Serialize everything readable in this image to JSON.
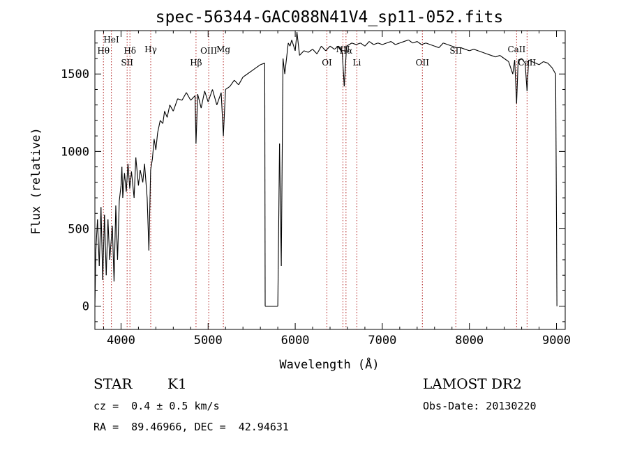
{
  "chart_data": {
    "type": "line",
    "title": "spec-56344-GAC088N41V4_sp11-052.fits",
    "xlabel": "Wavelength (Å)",
    "ylabel": "Flux (relative)",
    "xlim": [
      3700,
      9100
    ],
    "ylim": [
      -150,
      1780
    ],
    "x_ticks": [
      4000,
      5000,
      6000,
      7000,
      8000,
      9000
    ],
    "y_ticks": [
      0,
      500,
      1000,
      1500
    ],
    "grid": false,
    "series": [
      {
        "color": "#000000",
        "points": [
          [
            3700,
            0
          ],
          [
            3710,
            350
          ],
          [
            3730,
            560
          ],
          [
            3750,
            260
          ],
          [
            3770,
            640
          ],
          [
            3790,
            170
          ],
          [
            3810,
            590
          ],
          [
            3830,
            200
          ],
          [
            3850,
            560
          ],
          [
            3870,
            300
          ],
          [
            3900,
            520
          ],
          [
            3920,
            160
          ],
          [
            3940,
            650
          ],
          [
            3960,
            300
          ],
          [
            3980,
            680
          ],
          [
            4000,
            780
          ],
          [
            4010,
            900
          ],
          [
            4020,
            700
          ],
          [
            4040,
            860
          ],
          [
            4060,
            740
          ],
          [
            4080,
            920
          ],
          [
            4100,
            760
          ],
          [
            4120,
            870
          ],
          [
            4150,
            700
          ],
          [
            4170,
            960
          ],
          [
            4200,
            780
          ],
          [
            4220,
            880
          ],
          [
            4250,
            800
          ],
          [
            4270,
            920
          ],
          [
            4300,
            700
          ],
          [
            4320,
            360
          ],
          [
            4340,
            880
          ],
          [
            4360,
            950
          ],
          [
            4380,
            1080
          ],
          [
            4400,
            1010
          ],
          [
            4420,
            1120
          ],
          [
            4450,
            1200
          ],
          [
            4480,
            1180
          ],
          [
            4500,
            1260
          ],
          [
            4530,
            1220
          ],
          [
            4560,
            1300
          ],
          [
            4600,
            1260
          ],
          [
            4650,
            1340
          ],
          [
            4700,
            1330
          ],
          [
            4750,
            1380
          ],
          [
            4800,
            1330
          ],
          [
            4850,
            1360
          ],
          [
            4861,
            1050
          ],
          [
            4880,
            1370
          ],
          [
            4920,
            1280
          ],
          [
            4960,
            1390
          ],
          [
            5000,
            1320
          ],
          [
            5050,
            1400
          ],
          [
            5100,
            1300
          ],
          [
            5150,
            1380
          ],
          [
            5175,
            1100
          ],
          [
            5200,
            1400
          ],
          [
            5250,
            1420
          ],
          [
            5300,
            1460
          ],
          [
            5350,
            1430
          ],
          [
            5400,
            1480
          ],
          [
            5450,
            1500
          ],
          [
            5500,
            1520
          ],
          [
            5550,
            1540
          ],
          [
            5600,
            1560
          ],
          [
            5650,
            1570
          ],
          [
            5655,
            0
          ],
          [
            5800,
            0
          ],
          [
            5805,
            240
          ],
          [
            5820,
            1050
          ],
          [
            5840,
            260
          ],
          [
            5860,
            1600
          ],
          [
            5880,
            1500
          ],
          [
            5900,
            1600
          ],
          [
            5920,
            1700
          ],
          [
            5940,
            1680
          ],
          [
            5960,
            1720
          ],
          [
            6000,
            1650
          ],
          [
            6020,
            1770
          ],
          [
            6050,
            1620
          ],
          [
            6100,
            1650
          ],
          [
            6150,
            1640
          ],
          [
            6200,
            1660
          ],
          [
            6250,
            1630
          ],
          [
            6300,
            1680
          ],
          [
            6350,
            1650
          ],
          [
            6400,
            1680
          ],
          [
            6450,
            1660
          ],
          [
            6500,
            1680
          ],
          [
            6540,
            1640
          ],
          [
            6563,
            1420
          ],
          [
            6590,
            1680
          ],
          [
            6650,
            1700
          ],
          [
            6700,
            1690
          ],
          [
            6750,
            1700
          ],
          [
            6800,
            1680
          ],
          [
            6850,
            1710
          ],
          [
            6900,
            1690
          ],
          [
            6950,
            1700
          ],
          [
            7000,
            1690
          ],
          [
            7050,
            1700
          ],
          [
            7100,
            1710
          ],
          [
            7150,
            1690
          ],
          [
            7200,
            1700
          ],
          [
            7250,
            1710
          ],
          [
            7300,
            1720
          ],
          [
            7350,
            1700
          ],
          [
            7400,
            1710
          ],
          [
            7450,
            1690
          ],
          [
            7500,
            1700
          ],
          [
            7550,
            1690
          ],
          [
            7600,
            1680
          ],
          [
            7650,
            1670
          ],
          [
            7700,
            1700
          ],
          [
            7750,
            1690
          ],
          [
            7800,
            1680
          ],
          [
            7850,
            1670
          ],
          [
            7900,
            1670
          ],
          [
            7950,
            1660
          ],
          [
            8000,
            1650
          ],
          [
            8050,
            1660
          ],
          [
            8100,
            1650
          ],
          [
            8150,
            1640
          ],
          [
            8200,
            1630
          ],
          [
            8250,
            1620
          ],
          [
            8300,
            1610
          ],
          [
            8350,
            1620
          ],
          [
            8400,
            1600
          ],
          [
            8450,
            1580
          ],
          [
            8498,
            1500
          ],
          [
            8520,
            1590
          ],
          [
            8542,
            1310
          ],
          [
            8560,
            1590
          ],
          [
            8600,
            1600
          ],
          [
            8640,
            1570
          ],
          [
            8662,
            1390
          ],
          [
            8680,
            1590
          ],
          [
            8720,
            1580
          ],
          [
            8760,
            1570
          ],
          [
            8800,
            1560
          ],
          [
            8850,
            1580
          ],
          [
            8900,
            1570
          ],
          [
            8950,
            1540
          ],
          [
            8990,
            1500
          ],
          [
            9000,
            550
          ],
          [
            9005,
            0
          ]
        ]
      }
    ],
    "lines": [
      {
        "x": 3798,
        "label": "Hθ",
        "row": 2
      },
      {
        "x": 3889,
        "label": "HeI",
        "row": 0
      },
      {
        "x": 4070,
        "label": "SII",
        "row": 3
      },
      {
        "x": 4102,
        "label": "Hδ",
        "row": 2
      },
      {
        "x": 4341,
        "label": "Hγ",
        "row": 1
      },
      {
        "x": 4861,
        "label": "Hβ",
        "row": 3
      },
      {
        "x": 5007,
        "label": "OIII",
        "row": 2
      },
      {
        "x": 5175,
        "label": "Mg",
        "row": 1
      },
      {
        "x": 6364,
        "label": "OI",
        "row": 3
      },
      {
        "x": 6548,
        "label": "NII",
        "row": 1
      },
      {
        "x": 6583,
        "label": "Hα",
        "row": 2
      },
      {
        "x": 6708,
        "label": "Li",
        "row": 3
      },
      {
        "x": 7460,
        "label": "OII",
        "row": 3
      },
      {
        "x": 7844,
        "label": "SII",
        "row": 2
      },
      {
        "x": 8542,
        "label": "CaII",
        "row": 1
      },
      {
        "x": 8662,
        "label": "CaII",
        "row": 3
      }
    ],
    "line_color": "#b22222"
  },
  "info": {
    "object_class": "STAR",
    "subclass": "K1",
    "survey": "LAMOST DR2",
    "redshift": "cz =  0.4 ± 0.5 km/s",
    "obs_date": "Obs-Date: 20130220",
    "coords": "RA =  89.46966, DEC =  42.94631"
  }
}
